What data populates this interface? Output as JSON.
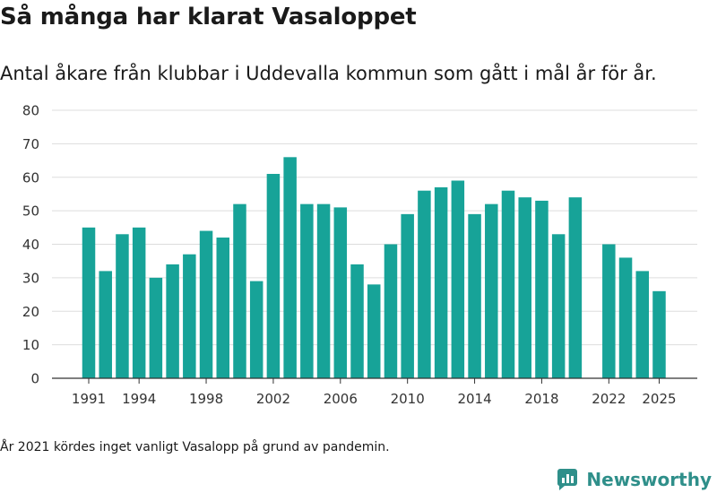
{
  "title": "Så många har klarat Vasaloppet",
  "subtitle": "Antal åkare från klubbar i Uddevalla kommun som gått i mål år för år.",
  "note": "År 2021 kördes inget vanligt Vasalopp på grund av pandemin.",
  "brand": "Newsworthy",
  "colors": {
    "bar": "#17a398",
    "grid": "#dddddd",
    "axis": "#333333",
    "text": "#333333",
    "brand": "#2f8f8a"
  },
  "chart_data": {
    "type": "bar",
    "categories": [
      "1991",
      "1992",
      "1993",
      "1994",
      "1995",
      "1996",
      "1997",
      "1998",
      "1999",
      "2000",
      "2001",
      "2002",
      "2003",
      "2004",
      "2005",
      "2006",
      "2007",
      "2008",
      "2009",
      "2010",
      "2011",
      "2012",
      "2013",
      "2014",
      "2015",
      "2016",
      "2017",
      "2018",
      "2019",
      "2020",
      "2021",
      "2022",
      "2023",
      "2024",
      "2025"
    ],
    "values": [
      45,
      32,
      43,
      45,
      30,
      34,
      37,
      44,
      42,
      52,
      29,
      61,
      66,
      52,
      52,
      51,
      34,
      28,
      40,
      49,
      56,
      57,
      59,
      49,
      52,
      56,
      54,
      53,
      43,
      54,
      null,
      40,
      36,
      32,
      26
    ],
    "xticks": [
      "1991",
      "1994",
      "1998",
      "2002",
      "2006",
      "2010",
      "2014",
      "2018",
      "2022",
      "2025"
    ],
    "yticks": [
      0,
      10,
      20,
      30,
      40,
      50,
      60,
      70,
      80
    ],
    "ylim": [
      0,
      80
    ],
    "grid": true
  }
}
